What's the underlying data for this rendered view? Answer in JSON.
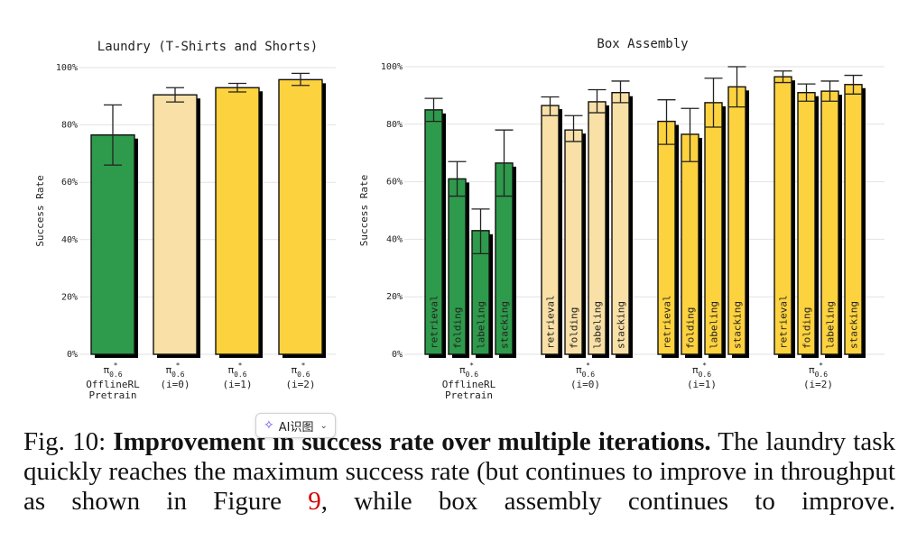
{
  "chart_data": [
    {
      "type": "bar",
      "title": "Laundry (T-Shirts and Shorts)",
      "ylabel": "Success Rate",
      "ylim": [
        0,
        100
      ],
      "yticks": [
        "0%",
        "20%",
        "40%",
        "60%",
        "80%",
        "100%"
      ],
      "grid": true,
      "categories": [
        {
          "symbol": "π",
          "sup": "*",
          "sub": "0.6",
          "lines": [
            "OfflineRL",
            "Pretrain"
          ]
        },
        {
          "symbol": "π",
          "sup": "*",
          "sub": "0.6",
          "lines": [
            "(i=0)"
          ]
        },
        {
          "symbol": "π",
          "sup": "*",
          "sub": "0.6",
          "lines": [
            "(i=1)"
          ]
        },
        {
          "symbol": "π",
          "sup": "*",
          "sub": "0.6",
          "lines": [
            "(i=2)"
          ]
        }
      ],
      "values": [
        76.5,
        90.5,
        93.0,
        95.8
      ],
      "errors": [
        [
          66,
          87
        ],
        [
          88,
          93
        ],
        [
          91.5,
          94.5
        ],
        [
          93.8,
          98
        ]
      ],
      "colors": [
        "#2e9a4b",
        "#f8e0a6",
        "#fdd23f",
        "#fdd23f"
      ]
    },
    {
      "type": "bar",
      "title": "Box Assembly",
      "ylabel": "Success Rate",
      "ylim": [
        0,
        100
      ],
      "yticks": [
        "0%",
        "20%",
        "40%",
        "60%",
        "80%",
        "100%"
      ],
      "grid": true,
      "subtasks": [
        "retrieval",
        "folding",
        "labeling",
        "stacking"
      ],
      "groups": [
        {
          "symbol": "π",
          "sup": "*",
          "sub": "0.6",
          "lines": [
            "OfflineRL",
            "Pretrain"
          ],
          "color": "#2e9a4b",
          "values": [
            85,
            61,
            43,
            66.5
          ],
          "errors": [
            [
              81,
              89
            ],
            [
              55,
              67
            ],
            [
              35,
              50.5
            ],
            [
              55,
              78
            ]
          ]
        },
        {
          "symbol": "π",
          "sup": "*",
          "sub": "0.6",
          "lines": [
            "(i=0)"
          ],
          "color": "#f8e0a6",
          "values": [
            86.5,
            78,
            87.8,
            91
          ],
          "errors": [
            [
              83,
              89.5
            ],
            [
              74,
              83
            ],
            [
              84,
              92
            ],
            [
              87.5,
              95
            ]
          ]
        },
        {
          "symbol": "π",
          "sup": "*",
          "sub": "0.6",
          "lines": [
            "(i=1)"
          ],
          "color": "#fdd23f",
          "values": [
            81,
            76.5,
            87.5,
            93
          ],
          "errors": [
            [
              73,
              88.5
            ],
            [
              67,
              85.5
            ],
            [
              79,
              96
            ],
            [
              86,
              100
            ]
          ]
        },
        {
          "symbol": "π",
          "sup": "*",
          "sub": "0.6",
          "lines": [
            "(i=2)"
          ],
          "color": "#fdd23f",
          "values": [
            96.5,
            91,
            91.5,
            93.8
          ],
          "errors": [
            [
              94.5,
              98.5
            ],
            [
              88,
              94
            ],
            [
              88,
              95
            ],
            [
              90.5,
              97
            ]
          ]
        }
      ]
    }
  ],
  "caption": {
    "label": "Fig. 10: ",
    "bold": "Improvement in success rate over multiple iterations.",
    "text1": " The laundry task quickly reaches the maximum success rate (but continues to improve in throughput as shown in Figure ",
    "ref": "9",
    "text2": ", while box assembly continues to improve."
  },
  "overlay": {
    "ai_button_label": "AI识图",
    "spark_icon": "✧",
    "chevron_icon": "⌄"
  }
}
